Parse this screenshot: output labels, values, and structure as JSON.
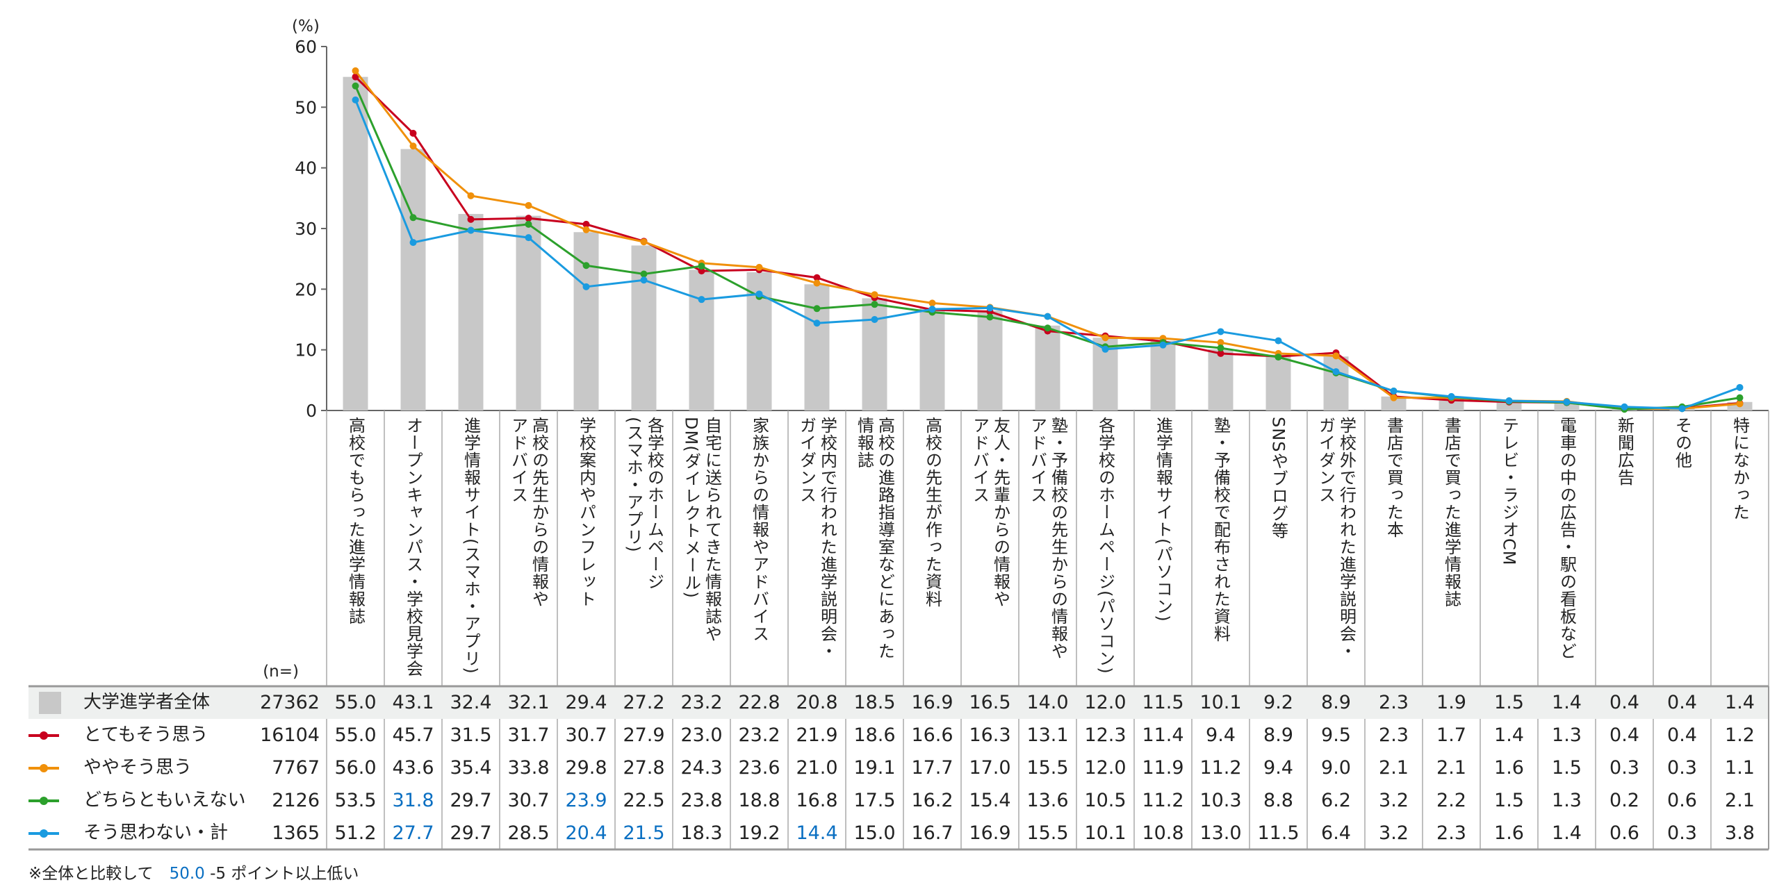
{
  "chart_data": {
    "type": "bar+line",
    "unit_label": "(%)",
    "n_label": "(n=)",
    "ylim": [
      0,
      60
    ],
    "yticks": [
      0,
      10,
      20,
      30,
      40,
      50,
      60
    ],
    "categories": [
      "高校でもらった進学情報誌",
      "オープンキャンパス・学校見学会",
      "進学情報サイト(スマホ・アプリ)",
      "高校の先生からの情報や\nアドバイス",
      "学校案内やパンフレット",
      "各学校のホームページ\n(スマホ・アプリ)",
      "自宅に送られてきた情報誌や\nDM(ダイレクトメール)",
      "家族からの情報やアドバイス",
      "学校内で行われた進学説明会・\nガイダンス",
      "高校の進路指導室などにあった\n情報誌",
      "高校の先生が作った資料",
      "友人・先輩からの情報や\nアドバイス",
      "塾・予備校の先生からの情報や\nアドバイス",
      "各学校のホームページ(パソコン)",
      "進学情報サイト(パソコン)",
      "塾・予備校で配布された資料",
      "SNSやブログ等",
      "学校外で行われた進学説明会・\nガイダンス",
      "書店で買った本",
      "書店で買った進学情報誌",
      "テレビ・ラジオCM",
      "電車の中の広告・駅の看板など",
      "新聞広告",
      "その他",
      "特になかった"
    ],
    "series": [
      {
        "name": "大学進学者全体",
        "n": "27362",
        "kind": "bar",
        "color": "#c8c8c8",
        "values": [
          55.0,
          43.1,
          32.4,
          32.1,
          29.4,
          27.2,
          23.2,
          22.8,
          20.8,
          18.5,
          16.9,
          16.5,
          14.0,
          12.0,
          11.5,
          10.1,
          9.2,
          8.9,
          2.3,
          1.9,
          1.5,
          1.4,
          0.4,
          0.4,
          1.4
        ],
        "highlight": []
      },
      {
        "name": "とてもそう思う",
        "n": "16104",
        "kind": "line",
        "color": "#c8001e",
        "values": [
          55.0,
          45.7,
          31.5,
          31.7,
          30.7,
          27.9,
          23.0,
          23.2,
          21.9,
          18.6,
          16.6,
          16.3,
          13.1,
          12.3,
          11.4,
          9.4,
          8.9,
          9.5,
          2.3,
          1.7,
          1.4,
          1.3,
          0.4,
          0.4,
          1.2
        ],
        "highlight": []
      },
      {
        "name": "ややそう思う",
        "n": "7767",
        "kind": "line",
        "color": "#f0900a",
        "values": [
          56.0,
          43.6,
          35.4,
          33.8,
          29.8,
          27.8,
          24.3,
          23.6,
          21.0,
          19.1,
          17.7,
          17.0,
          15.5,
          12.0,
          11.9,
          11.2,
          9.4,
          9.0,
          2.1,
          2.1,
          1.6,
          1.5,
          0.3,
          0.3,
          1.1
        ],
        "highlight": []
      },
      {
        "name": "どちらともいえない",
        "n": "2126",
        "kind": "line",
        "color": "#2ca02c",
        "values": [
          53.5,
          31.8,
          29.7,
          30.7,
          23.9,
          22.5,
          23.8,
          18.8,
          16.8,
          17.5,
          16.2,
          15.4,
          13.6,
          10.5,
          11.2,
          10.3,
          8.8,
          6.2,
          3.2,
          2.2,
          1.5,
          1.3,
          0.2,
          0.6,
          2.1
        ],
        "highlight": [
          1,
          4
        ]
      },
      {
        "name": "そう思わない・計",
        "n": "1365",
        "kind": "line",
        "color": "#1a9be0",
        "values": [
          51.2,
          27.7,
          29.7,
          28.5,
          20.4,
          21.5,
          18.3,
          19.2,
          14.4,
          15.0,
          16.7,
          16.9,
          15.5,
          10.1,
          10.8,
          13.0,
          11.5,
          6.4,
          3.2,
          2.3,
          1.6,
          1.4,
          0.6,
          0.3,
          3.8
        ],
        "highlight": [
          1,
          4,
          5,
          8
        ]
      }
    ],
    "highlight_color": "#0a6fc2",
    "footnote": {
      "prefix": "※全体と比較して",
      "sample": "50.0",
      "suffix": "-5 ポイント以上低い"
    }
  }
}
